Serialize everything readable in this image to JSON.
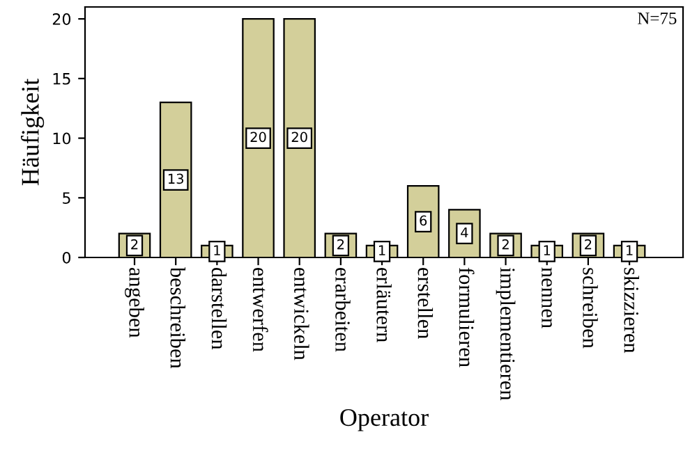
{
  "chart_data": {
    "type": "bar",
    "xlabel": "Operator",
    "ylabel": "Häufigkeit",
    "categories": [
      "angeben",
      "beschreiben",
      "darstellen",
      "entwerfen",
      "entwickeln",
      "erarbeiten",
      "erläutern",
      "erstellen",
      "formulieren",
      "implementieren",
      "nennen",
      "schreiben",
      "skizzieren"
    ],
    "values": [
      2,
      13,
      1,
      20,
      20,
      2,
      1,
      6,
      4,
      2,
      1,
      2,
      1
    ],
    "color": "#d3cf9a",
    "ylim": [
      0,
      21
    ],
    "yticks": [
      0,
      5,
      10,
      15,
      20
    ],
    "annotations": [
      "N=75"
    ],
    "data_labels": true,
    "grid": false,
    "legend": false
  }
}
